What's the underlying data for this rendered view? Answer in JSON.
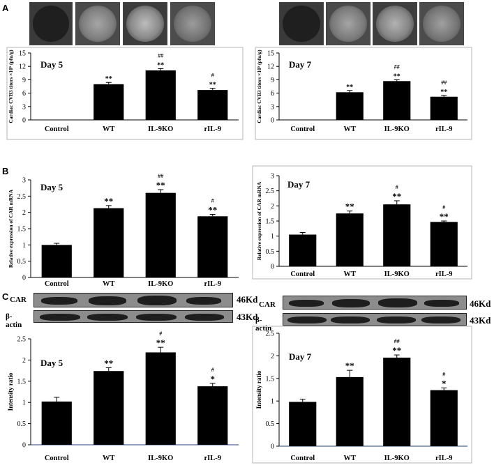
{
  "panel_labels": [
    "A",
    "B",
    "C"
  ],
  "colors": {
    "bar": "#000000",
    "axis": "#000000",
    "axisC": "#1f3f7f",
    "photo_dark": "#2a2a2a",
    "photo_light": "#9a9a9a",
    "strip": "#8c8c8c",
    "band": "#1e1e1e"
  },
  "western_blot": {
    "rows": [
      {
        "label": "CAR",
        "kd": "46Kd"
      },
      {
        "label": "β-actin",
        "kd": "43Kd"
      }
    ]
  },
  "chart_data": [
    {
      "type": "bar",
      "title": "Day 5",
      "ylabel": "Cardiac CVB3 titers ×10⁵ (pfu/g)",
      "categories": [
        "Control",
        "WT",
        "IL-9KO",
        "rIL-9"
      ],
      "values": [
        0,
        8.0,
        11.1,
        6.7
      ],
      "errors": [
        0,
        0.4,
        0.4,
        0.4
      ],
      "ylim": [
        0,
        15
      ],
      "yticks": [
        "0",
        "3",
        "6",
        "9",
        "12",
        "15"
      ],
      "annotations": [
        [],
        [
          "**"
        ],
        [
          "##",
          "**"
        ],
        [
          "#",
          "**"
        ]
      ]
    },
    {
      "type": "bar",
      "title": "Day 7",
      "ylabel": "Cardiac CVB3 titers ×10⁵ (pfu/g)",
      "categories": [
        "Control",
        "WT",
        "IL-9KO",
        "rIL-9"
      ],
      "values": [
        0,
        6.2,
        8.7,
        5.2
      ],
      "errors": [
        0,
        0.4,
        0.3,
        0.3
      ],
      "ylim": [
        0,
        15
      ],
      "yticks": [
        "0",
        "3",
        "6",
        "9",
        "12",
        "15"
      ],
      "annotations": [
        [],
        [
          "**"
        ],
        [
          "##",
          "**"
        ],
        [
          "##",
          "**"
        ]
      ]
    },
    {
      "type": "bar",
      "title": "Day 5",
      "ylabel": "Relative expression of CAR mRNA",
      "categories": [
        "Control",
        "WT",
        "IL-9KO",
        "rIL-9"
      ],
      "values": [
        1.0,
        2.13,
        2.6,
        1.88
      ],
      "errors": [
        0.05,
        0.08,
        0.1,
        0.06
      ],
      "ylim": [
        0,
        3
      ],
      "yticks": [
        "0",
        "0.5",
        "1",
        "1.5",
        "2",
        "2.5",
        "3"
      ],
      "annotations": [
        [],
        [
          "**"
        ],
        [
          "##",
          "**"
        ],
        [
          "#",
          "**"
        ]
      ]
    },
    {
      "type": "bar",
      "title": "Day 7",
      "ylabel": "Relative expression of CAR mRNA",
      "categories": [
        "Control",
        "WT",
        "IL-9KO",
        "rIL-9"
      ],
      "values": [
        1.05,
        1.75,
        2.05,
        1.47
      ],
      "errors": [
        0.07,
        0.08,
        0.12,
        0.03
      ],
      "ylim": [
        0,
        3
      ],
      "yticks": [
        "0",
        "0.5",
        "1",
        "1.5",
        "2",
        "2.5",
        "3"
      ],
      "annotations": [
        [],
        [
          "**"
        ],
        [
          "#",
          "**"
        ],
        [
          "#",
          "**"
        ]
      ]
    },
    {
      "type": "bar",
      "title": "Day 5",
      "ylabel": "Intensity ratio",
      "categories": [
        "Control",
        "WT",
        "IL-9KO",
        "rIL-9"
      ],
      "values": [
        1.02,
        1.74,
        2.18,
        1.38
      ],
      "errors": [
        0.1,
        0.08,
        0.12,
        0.07
      ],
      "ylim": [
        0,
        2.5
      ],
      "yticks": [
        "0",
        "0.5",
        "1",
        "1.5",
        "2",
        "2.5"
      ],
      "annotations": [
        [],
        [
          "**"
        ],
        [
          "#",
          "**"
        ],
        [
          "#",
          "*"
        ]
      ]
    },
    {
      "type": "bar",
      "title": "Day 7",
      "ylabel": "Intensity ratio",
      "categories": [
        "Control",
        "WT",
        "IL-9KO",
        "rIL-9"
      ],
      "values": [
        0.98,
        1.53,
        1.96,
        1.24
      ],
      "errors": [
        0.06,
        0.15,
        0.06,
        0.05
      ],
      "ylim": [
        0,
        2.5
      ],
      "yticks": [
        "0",
        "0.5",
        "1",
        "1.5",
        "2",
        "2.5"
      ],
      "annotations": [
        [],
        [
          "**"
        ],
        [
          "##",
          "**"
        ],
        [
          "#",
          "*"
        ]
      ]
    }
  ]
}
